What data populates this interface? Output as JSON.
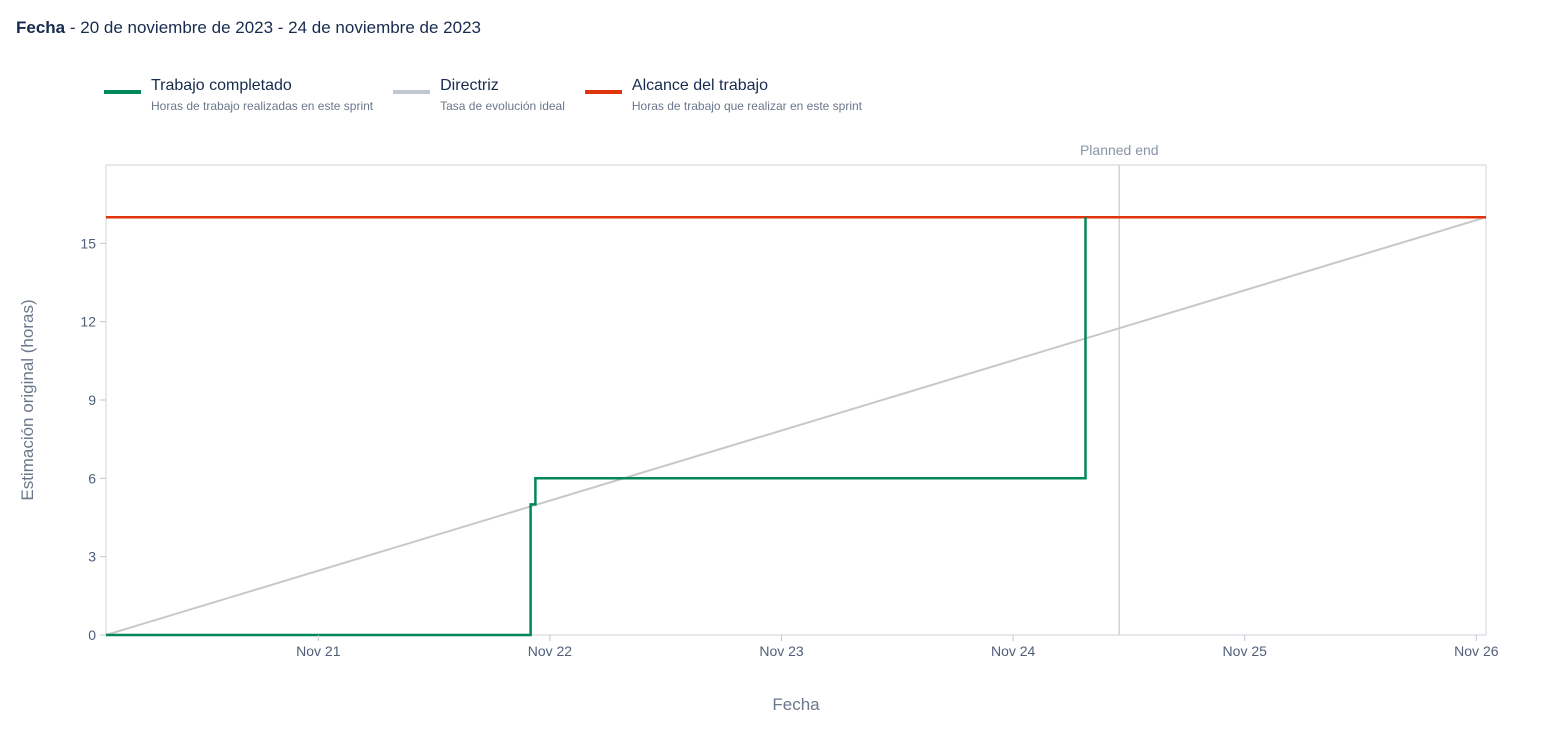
{
  "header": {
    "label": "Fecha",
    "range": " - 20 de noviembre de 2023 - 24 de noviembre de 2023"
  },
  "legend": [
    {
      "name": "Trabajo completado",
      "desc": "Horas de trabajo realizadas en este sprint",
      "color": "#00875a"
    },
    {
      "name": "Directriz",
      "desc": "Tasa de evolución ideal",
      "color": "#c1c7d0"
    },
    {
      "name": "Alcance del trabajo",
      "desc": "Horas de trabajo que realizar en este sprint",
      "color": "#de350b"
    }
  ],
  "chart_data": {
    "type": "line",
    "xlabel": "Fecha",
    "ylabel": "Estimación original (horas)",
    "x_ticks": [
      "Nov 21",
      "Nov 22",
      "Nov 23",
      "Nov 24",
      "Nov 25",
      "Nov 26"
    ],
    "xlim": [
      "2023-11-20T14:00",
      "2023-11-26T13:00"
    ],
    "ylim": [
      0,
      18
    ],
    "y_ticks": [
      0,
      3,
      6,
      9,
      12,
      15
    ],
    "annotation": {
      "label": "Planned end",
      "x": "2023-11-24T23:00"
    },
    "grid": false,
    "series": [
      {
        "name": "Trabajo completado",
        "color": "#00875a",
        "step": true,
        "points": [
          {
            "x": "2023-11-20T14:00",
            "y": 0
          },
          {
            "x": "2023-11-22T10:00",
            "y": 0
          },
          {
            "x": "2023-11-22T10:00",
            "y": 5
          },
          {
            "x": "2023-11-22T10:30",
            "y": 5
          },
          {
            "x": "2023-11-22T10:30",
            "y": 6
          },
          {
            "x": "2023-11-24T19:30",
            "y": 6
          },
          {
            "x": "2023-11-24T19:30",
            "y": 16
          }
        ]
      },
      {
        "name": "Directriz",
        "color": "#c8c8c8",
        "points": [
          {
            "x": "2023-11-20T14:00",
            "y": 0
          },
          {
            "x": "2023-11-26T13:00",
            "y": 16
          }
        ]
      },
      {
        "name": "Alcance del trabajo",
        "color": "#de350b",
        "points": [
          {
            "x": "2023-11-20T14:00",
            "y": 16
          },
          {
            "x": "2023-11-26T13:00",
            "y": 16
          }
        ]
      }
    ]
  }
}
